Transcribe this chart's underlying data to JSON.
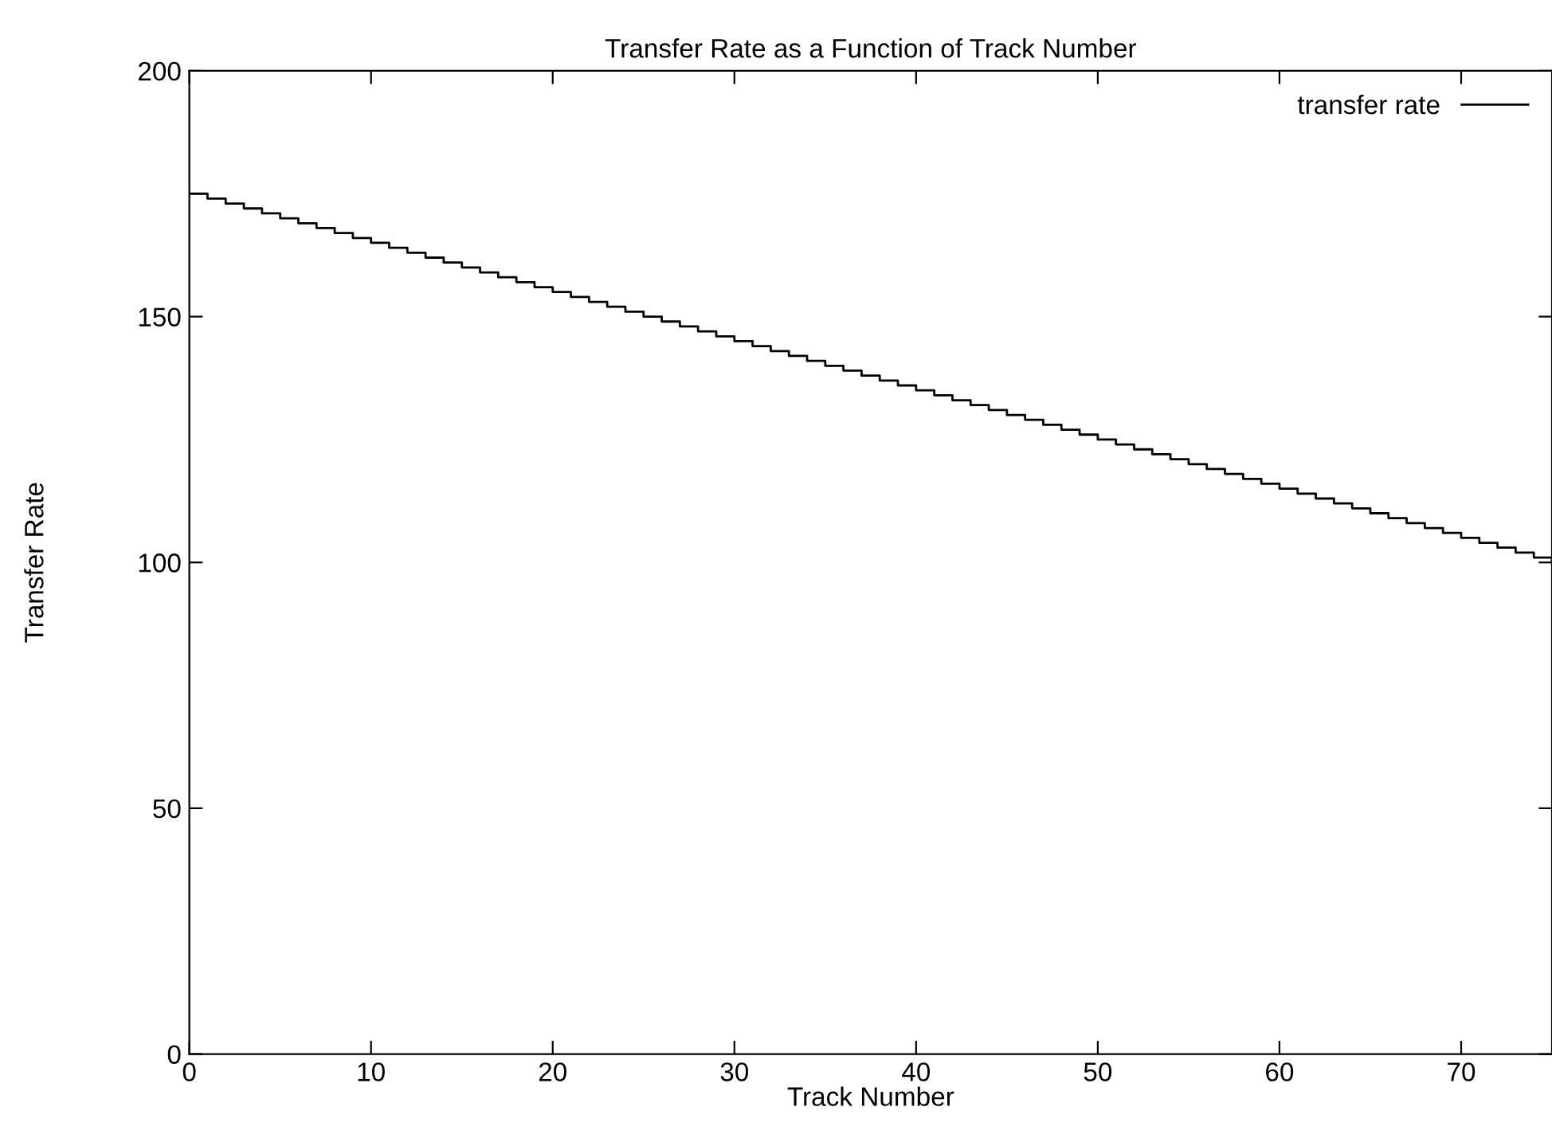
{
  "chart_data": {
    "type": "step",
    "title": "Transfer Rate as a Function of Track Number",
    "xlabel": "Track Number",
    "ylabel": "Transfer Rate",
    "x": [
      0,
      1,
      2,
      3,
      4,
      5,
      6,
      7,
      8,
      9,
      10,
      11,
      12,
      13,
      14,
      15,
      16,
      17,
      18,
      19,
      20,
      21,
      22,
      23,
      24,
      25,
      26,
      27,
      28,
      29,
      30,
      31,
      32,
      33,
      34,
      35,
      36,
      37,
      38,
      39,
      40,
      41,
      42,
      43,
      44,
      45,
      46,
      47,
      48,
      49,
      50,
      51,
      52,
      53,
      54,
      55,
      56,
      57,
      58,
      59,
      60,
      61,
      62,
      63,
      64,
      65,
      66,
      67,
      68,
      69,
      70,
      71,
      72,
      73,
      74,
      75
    ],
    "series": [
      {
        "name": "transfer rate",
        "color": "#000000",
        "values": [
          175,
          174,
          173,
          172,
          171,
          170,
          169,
          168,
          167,
          166,
          165,
          164,
          163,
          162,
          161,
          160,
          159,
          158,
          157,
          156,
          155,
          154,
          153,
          152,
          151,
          150,
          149,
          148,
          147,
          146,
          145,
          144,
          143,
          142,
          141,
          140,
          139,
          138,
          137,
          136,
          135,
          134,
          133,
          132,
          131,
          130,
          129,
          128,
          127,
          126,
          125,
          124,
          123,
          122,
          121,
          120,
          119,
          118,
          117,
          116,
          115,
          114,
          113,
          112,
          111,
          110,
          109,
          108,
          107,
          106,
          105,
          104,
          103,
          102,
          101,
          100
        ]
      }
    ],
    "xlim": [
      0,
      75
    ],
    "ylim": [
      0,
      200
    ],
    "xticks": [
      0,
      10,
      20,
      30,
      40,
      50,
      60,
      70
    ],
    "yticks": [
      0,
      50,
      100,
      150,
      200
    ],
    "grid": false,
    "legend": "top right",
    "line_style": "solid",
    "marker": "none"
  }
}
